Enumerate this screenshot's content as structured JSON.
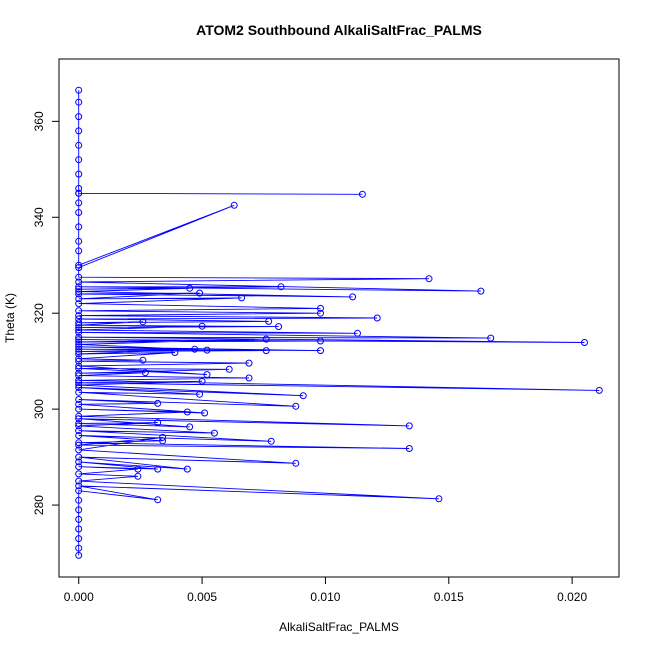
{
  "chart_data": {
    "type": "line",
    "title": "ATOM2 Southbound AlkaliSaltFrac_PALMS",
    "xlabel": "AlkaliSaltFrac_PALMS",
    "ylabel": "Theta (K)",
    "xlim": [
      -0.0008,
      0.0219
    ],
    "ylim": [
      265,
      373
    ],
    "xticks": [
      0,
      0.005,
      0.01,
      0.015,
      0.02
    ],
    "xtick_labels": [
      "0.000",
      "0.005",
      "0.010",
      "0.015",
      "0.020"
    ],
    "yticks": [
      280,
      300,
      320,
      340,
      360
    ],
    "ytick_labels": [
      "280",
      "300",
      "320",
      "340",
      "360"
    ],
    "grid": false,
    "legend": "none",
    "marker": "open-circle",
    "color": "#0000ff",
    "series": [
      {
        "values": [
          [
            0,
            366.5
          ],
          [
            0,
            364
          ],
          [
            0,
            361
          ],
          [
            0,
            358
          ],
          [
            0,
            355
          ],
          [
            0,
            352
          ],
          [
            0,
            349
          ],
          [
            0,
            346
          ],
          [
            0,
            345
          ],
          [
            0.0115,
            344.8
          ],
          [
            0,
            345
          ],
          [
            0,
            343
          ],
          [
            0,
            341
          ],
          [
            0,
            338
          ],
          [
            0,
            335
          ],
          [
            0,
            333
          ],
          [
            0,
            330
          ],
          [
            0.0063,
            342.5
          ],
          [
            0,
            329.5
          ],
          [
            0,
            327.5
          ],
          [
            0.0142,
            327.2
          ],
          [
            0,
            326.5
          ],
          [
            0.0163,
            324.6
          ],
          [
            0,
            325.5
          ],
          [
            0.0082,
            325.5
          ],
          [
            0,
            325
          ],
          [
            0.0045,
            325.2
          ],
          [
            0,
            324.5
          ],
          [
            0.0111,
            323.4
          ],
          [
            0,
            324
          ],
          [
            0.0049,
            324.2
          ],
          [
            0,
            323
          ],
          [
            0.0066,
            323.2
          ],
          [
            0,
            322
          ],
          [
            0.0098,
            321
          ],
          [
            0,
            320.5
          ],
          [
            0.0098,
            320
          ],
          [
            0,
            319.5
          ],
          [
            0.0121,
            319
          ],
          [
            0,
            318.8
          ],
          [
            0.0077,
            318.3
          ],
          [
            0,
            318
          ],
          [
            0.0026,
            318.2
          ],
          [
            0,
            317.5
          ],
          [
            0.0081,
            317.2
          ],
          [
            0,
            317
          ],
          [
            0.005,
            317.3
          ],
          [
            0,
            316.5
          ],
          [
            0.0113,
            315.8
          ],
          [
            0,
            316
          ],
          [
            0.0167,
            314.8
          ],
          [
            0,
            315
          ],
          [
            0.0205,
            313.9
          ],
          [
            0,
            314.5
          ],
          [
            0.0098,
            314.2
          ],
          [
            0,
            314
          ],
          [
            0.0076,
            314.6
          ],
          [
            0,
            313.5
          ],
          [
            0.0052,
            312.3
          ],
          [
            0,
            313
          ],
          [
            0.0098,
            312.2
          ],
          [
            0,
            312.5
          ],
          [
            0.0076,
            312.2
          ],
          [
            0,
            312
          ],
          [
            0.0047,
            312.5
          ],
          [
            0,
            311.5
          ],
          [
            0.0039,
            311.8
          ],
          [
            0,
            310.5
          ],
          [
            0.0026,
            310.2
          ],
          [
            0,
            310
          ],
          [
            0.0069,
            309.6
          ],
          [
            0,
            309
          ],
          [
            0.0052,
            307.2
          ],
          [
            0,
            308.5
          ],
          [
            0.0061,
            308.3
          ],
          [
            0,
            307.5
          ],
          [
            0.0027,
            307.6
          ],
          [
            0,
            307
          ],
          [
            0.0069,
            306.5
          ],
          [
            0,
            306
          ],
          [
            0.0211,
            303.9
          ],
          [
            0,
            305.5
          ],
          [
            0.005,
            305.8
          ],
          [
            0,
            305
          ],
          [
            0.0091,
            302.8
          ],
          [
            0,
            304.5
          ],
          [
            0.0049,
            303.1
          ],
          [
            0,
            303.5
          ],
          [
            0.0088,
            300.6
          ],
          [
            0,
            302
          ],
          [
            0.0032,
            301.2
          ],
          [
            0,
            301
          ],
          [
            0.0051,
            299.2
          ],
          [
            0,
            300
          ],
          [
            0.0044,
            299.4
          ],
          [
            0,
            298.5
          ],
          [
            0.0134,
            296.5
          ],
          [
            0,
            298
          ],
          [
            0.0045,
            296.3
          ],
          [
            0,
            297
          ],
          [
            0.0032,
            297.2
          ],
          [
            0,
            296.5
          ],
          [
            0.0055,
            295
          ],
          [
            0,
            295.5
          ],
          [
            0.0078,
            293.3
          ],
          [
            0,
            294.5
          ],
          [
            0.0034,
            293.4
          ],
          [
            0,
            293
          ],
          [
            0.0134,
            291.8
          ],
          [
            0,
            292.5
          ],
          [
            0.0034,
            294.1
          ],
          [
            0,
            291.5
          ],
          [
            0.0088,
            288.7
          ],
          [
            0,
            290
          ],
          [
            0.0044,
            287.5
          ],
          [
            0,
            289
          ],
          [
            0.0032,
            287.5
          ],
          [
            0,
            288
          ],
          [
            0.0024,
            287.5
          ],
          [
            0,
            286.5
          ],
          [
            0.0024,
            286
          ],
          [
            0,
            285
          ],
          [
            0.0146,
            281.3
          ],
          [
            0,
            284
          ],
          [
            0.0032,
            281.1
          ],
          [
            0,
            283
          ],
          [
            0,
            281
          ],
          [
            0,
            279
          ],
          [
            0,
            277
          ],
          [
            0,
            275
          ],
          [
            0,
            273
          ],
          [
            0,
            271
          ],
          [
            0,
            269.5
          ]
        ]
      }
    ]
  }
}
